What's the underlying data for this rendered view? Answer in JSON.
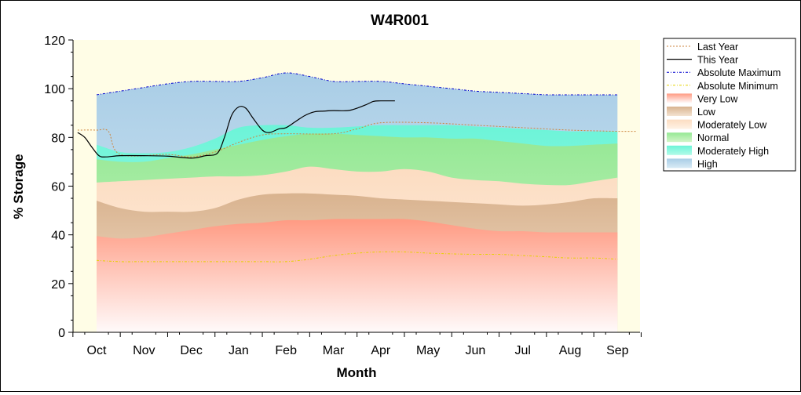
{
  "chart_data": {
    "type": "area",
    "title": "W4R001",
    "xlabel": "Month",
    "ylabel": "% Storage",
    "ylim": [
      0,
      120
    ],
    "yticks": [
      0,
      20,
      40,
      60,
      80,
      100,
      120
    ],
    "months": [
      "Oct",
      "Nov",
      "Dec",
      "Jan",
      "Feb",
      "Mar",
      "Apr",
      "May",
      "Jun",
      "Jul",
      "Aug",
      "Sep"
    ],
    "x": [
      0,
      0.5,
      1,
      1.5,
      2,
      2.5,
      3,
      3.5,
      4,
      4.5,
      5,
      5.5,
      6,
      6.5,
      7,
      7.5,
      8,
      8.5,
      9,
      9.5,
      10,
      10.5,
      11
    ],
    "legend_position": "right",
    "bands": [
      {
        "name": "Very Low",
        "color_top": "#ff9a82",
        "color_bottom": "#fffafa",
        "upper": [
          39.5,
          38.5,
          39,
          40.5,
          42,
          43.5,
          44.5,
          45,
          46,
          46,
          46.5,
          46.5,
          46.5,
          46.5,
          45.5,
          44,
          42.5,
          41.5,
          41.5,
          41,
          41,
          41,
          41
        ]
      },
      {
        "name": "Low",
        "color_top": "#d9b38f",
        "color_bottom": "#f3e3d1",
        "upper": [
          54,
          51,
          49.5,
          49.5,
          49.5,
          51,
          54.5,
          56.5,
          57,
          57,
          56.5,
          56,
          55,
          54.5,
          54,
          53.5,
          53,
          52.5,
          52,
          52.5,
          53.5,
          55,
          55
        ]
      },
      {
        "name": "Moderately Low",
        "color_top": "#fcdcc1",
        "color_bottom": "#fff3e6",
        "upper": [
          61.5,
          62,
          62.5,
          63,
          63.5,
          64,
          64,
          64.5,
          66,
          68,
          67,
          66,
          66,
          67,
          66,
          63.5,
          62.5,
          62,
          61,
          60.5,
          60.5,
          62,
          63.5
        ]
      },
      {
        "name": "Normal",
        "color_top": "#94e894",
        "color_bottom": "#d2f5c8",
        "upper": [
          71,
          70,
          70,
          71.5,
          73,
          75,
          77,
          79,
          80.5,
          81.5,
          81.5,
          81,
          80.5,
          80,
          80,
          79.5,
          79.5,
          78.5,
          77.5,
          76.5,
          76.5,
          77,
          77.5
        ]
      },
      {
        "name": "Moderately High",
        "color_top": "#6cf4d8",
        "color_bottom": "#b2fbe8",
        "upper": [
          77,
          74,
          73.5,
          74,
          76,
          79.5,
          84,
          85,
          85,
          84,
          84,
          84.5,
          85,
          85,
          85,
          85,
          84.5,
          84,
          83.5,
          83,
          82.5,
          82.5,
          82.5
        ]
      },
      {
        "name": "High",
        "color_top": "#a9cde6",
        "color_bottom": "#d8ebf5",
        "upper": [
          97.5,
          99,
          100.5,
          102,
          103,
          103,
          103,
          104.5,
          106.5,
          105,
          103,
          103,
          103,
          102,
          101,
          100,
          99,
          98.5,
          98,
          97.5,
          97.5,
          97.5,
          97.5
        ]
      }
    ],
    "lines": [
      {
        "name": "Last Year",
        "color": "#cd853f",
        "style": "dotted",
        "points": [
          [
            -0.4,
            83
          ],
          [
            0,
            83
          ],
          [
            0.25,
            82.5
          ],
          [
            0.5,
            73
          ],
          [
            1.5,
            73
          ],
          [
            2,
            72
          ],
          [
            2.5,
            74
          ],
          [
            3,
            78
          ],
          [
            3.5,
            81
          ],
          [
            4,
            81.5
          ],
          [
            5,
            81.5
          ],
          [
            5.5,
            83.5
          ],
          [
            6,
            86
          ],
          [
            7,
            86
          ],
          [
            8,
            85
          ],
          [
            9,
            84
          ],
          [
            10,
            83
          ],
          [
            11,
            82.5
          ],
          [
            11.4,
            82.5
          ]
        ]
      },
      {
        "name": "This Year",
        "color": "#000000",
        "style": "solid",
        "points": [
          [
            -0.4,
            82
          ],
          [
            -0.25,
            80
          ],
          [
            -0.1,
            76
          ],
          [
            0.05,
            72.5
          ],
          [
            0.2,
            72
          ],
          [
            0.5,
            72.5
          ],
          [
            1,
            72.5
          ],
          [
            1.5,
            72.3
          ],
          [
            2,
            71.5
          ],
          [
            2.3,
            72.5
          ],
          [
            2.55,
            73.5
          ],
          [
            2.7,
            80
          ],
          [
            2.85,
            89
          ],
          [
            3,
            92.5
          ],
          [
            3.15,
            92
          ],
          [
            3.3,
            88
          ],
          [
            3.5,
            83
          ],
          [
            3.65,
            82
          ],
          [
            3.85,
            83.5
          ],
          [
            4,
            84
          ],
          [
            4.2,
            86.5
          ],
          [
            4.4,
            89
          ],
          [
            4.6,
            90.5
          ],
          [
            4.8,
            90.8
          ],
          [
            5,
            91
          ],
          [
            5.3,
            91
          ],
          [
            5.5,
            92
          ],
          [
            5.7,
            93.5
          ],
          [
            5.85,
            94.8
          ],
          [
            6,
            95
          ],
          [
            6.3,
            95
          ]
        ]
      },
      {
        "name": "Absolute Maximum",
        "color": "#0000cd",
        "style": "dashdot",
        "points": [
          [
            0,
            97.5
          ],
          [
            0.5,
            99
          ],
          [
            1,
            100.5
          ],
          [
            1.5,
            102
          ],
          [
            2,
            103
          ],
          [
            2.5,
            103
          ],
          [
            3,
            103
          ],
          [
            3.5,
            104.5
          ],
          [
            4,
            106.5
          ],
          [
            4.5,
            105
          ],
          [
            5,
            103
          ],
          [
            5.5,
            103
          ],
          [
            6,
            103
          ],
          [
            6.5,
            102
          ],
          [
            7,
            101
          ],
          [
            7.5,
            100
          ],
          [
            8,
            99
          ],
          [
            8.5,
            98.5
          ],
          [
            9,
            98
          ],
          [
            9.5,
            97.5
          ],
          [
            10,
            97.5
          ],
          [
            10.5,
            97.5
          ],
          [
            11,
            97.5
          ]
        ]
      },
      {
        "name": "Absolute Minimum",
        "color": "#e6d200",
        "style": "dashdot",
        "points": [
          [
            0,
            29.5
          ],
          [
            0.5,
            29
          ],
          [
            1,
            29
          ],
          [
            1.5,
            29
          ],
          [
            2,
            29
          ],
          [
            2.5,
            29
          ],
          [
            3,
            29
          ],
          [
            3.5,
            29
          ],
          [
            4,
            29
          ],
          [
            4.5,
            30
          ],
          [
            5,
            31.5
          ],
          [
            5.5,
            32.5
          ],
          [
            6,
            33
          ],
          [
            6.5,
            33
          ],
          [
            7,
            32.5
          ],
          [
            7.5,
            32.2
          ],
          [
            8,
            32
          ],
          [
            8.5,
            32
          ],
          [
            9,
            31.5
          ],
          [
            9.5,
            31
          ],
          [
            10,
            30.5
          ],
          [
            10.5,
            30.5
          ],
          [
            11,
            30
          ]
        ]
      }
    ],
    "legend": [
      "Last Year",
      "This Year",
      "Absolute Maximum",
      "Absolute Minimum",
      "Very Low",
      "Low",
      "Moderately Low",
      "Normal",
      "Moderately High",
      "High"
    ],
    "colors": {
      "plot_background": "#fffde6",
      "axis": "#000000"
    }
  }
}
